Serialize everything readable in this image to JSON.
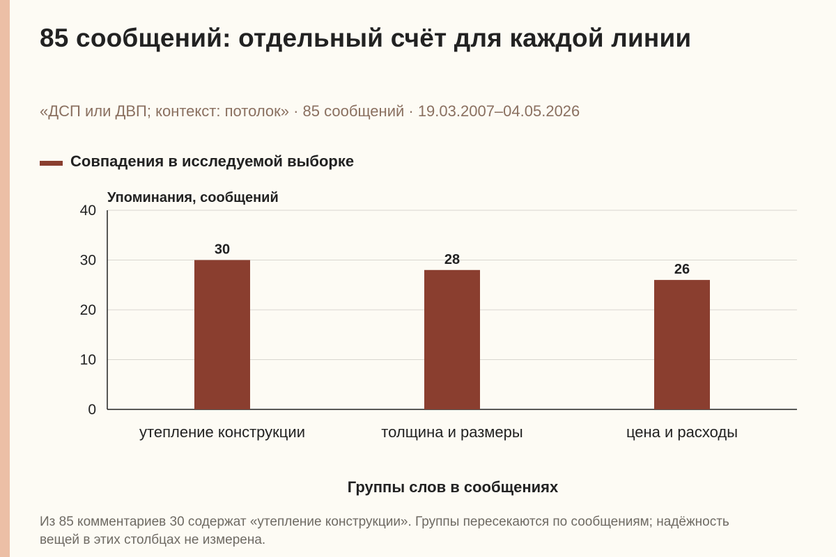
{
  "title": "85 сообщений: отдельный счёт для каждой линии",
  "subtitle": "«ДСП или ДВП; контекст: потолок» · 85 сообщений · 19.03.2007–04.05.2026",
  "note": "Из 85 комментариев 30 содержат «утепление конструкции». Группы пересекаются по сообщениям; надёжность вещей в этих столбцах не измерена.",
  "colors": {
    "bar": "#8a3e2f",
    "accent": "#ecbfa6",
    "background": "#fdfbf4"
  },
  "chart_data": {
    "type": "bar",
    "ylabel": "Упоминания, сообщений",
    "xlabel": "Группы слов в сообщениях",
    "categories": [
      "утепление конструкции",
      "толщина и размеры",
      "цена и расходы"
    ],
    "series": [
      {
        "name": "Совпадения в исследуемой выборке",
        "values": [
          30,
          28,
          26
        ]
      }
    ],
    "ylim": [
      0,
      40
    ],
    "yticks": [
      0,
      10,
      20,
      30,
      40
    ],
    "grid": true,
    "legend": "top-left"
  }
}
